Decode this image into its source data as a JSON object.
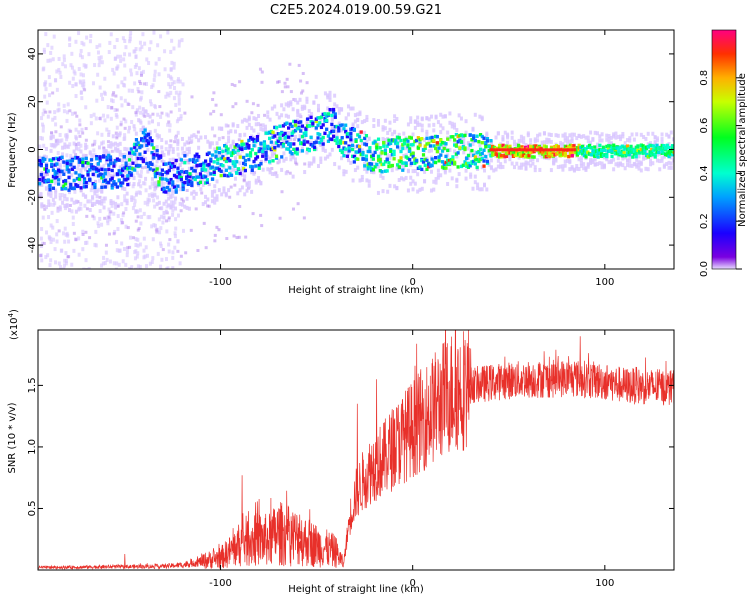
{
  "title": "C2E5.2024.019.00.59.G21",
  "chart_data": [
    {
      "type": "heatmap",
      "xlabel": "Height of straight line (km)",
      "ylabel": "Frequency (Hz)",
      "xlim": [
        -195,
        136
      ],
      "ylim": [
        -50,
        50
      ],
      "xticks": [
        -100,
        0,
        100
      ],
      "yticks": [
        -40,
        -20,
        0,
        20,
        40
      ],
      "colorbar": {
        "label": "Normalized spectral amplitude",
        "range": [
          0,
          1
        ],
        "ticks": [
          "0.0",
          "0.2",
          "0.4",
          "0.6",
          "0.8"
        ]
      },
      "ridge": {
        "x": [
          -195,
          -170,
          -150,
          -140,
          -130,
          -120,
          -100,
          -80,
          -70,
          -60,
          -50,
          -43,
          -38,
          -30,
          -20,
          -10,
          0,
          20,
          40,
          60,
          80,
          100,
          120,
          136
        ],
        "y": [
          -10,
          -9,
          -8,
          3,
          -12,
          -9,
          -5,
          0,
          4,
          6,
          8,
          12,
          5,
          2,
          -2,
          -1,
          -1,
          0,
          0,
          0,
          0,
          0,
          0,
          0
        ]
      }
    },
    {
      "type": "line",
      "xlabel": "Height of straight line (km)",
      "ylabel": "SNR (10 * v/v)",
      "y_multiplier": "(x10",
      "y_exponent": "4",
      "y_multiplier_close": ")",
      "xlim": [
        -195,
        136
      ],
      "ylim": [
        0,
        19500
      ],
      "xticks": [
        -100,
        0,
        100
      ],
      "yticks": [
        "0.5",
        "1.0",
        "1.5"
      ],
      "ytick_values": [
        5000,
        10000,
        15000
      ],
      "color": "#e8302a",
      "envelope": {
        "x": [
          -195,
          -130,
          -120,
          -110,
          -100,
          -95,
          -88,
          -80,
          -75,
          -70,
          -60,
          -50,
          -40,
          -36,
          -33,
          -30,
          -25,
          -20,
          -15,
          -10,
          0,
          10,
          20,
          30,
          40,
          50,
          60,
          70,
          80,
          90,
          100,
          110,
          120,
          136
        ],
        "y": [
          200,
          300,
          400,
          700,
          1000,
          1500,
          2300,
          2500,
          2400,
          3000,
          2600,
          2000,
          1500,
          500,
          4000,
          6000,
          7500,
          8500,
          9000,
          10000,
          11500,
          13000,
          14500,
          15000,
          15200,
          15400,
          15500,
          15500,
          15600,
          15500,
          15300,
          15000,
          14900,
          14800
        ]
      },
      "spikes": [
        {
          "x": -150,
          "y": 1300
        },
        {
          "x": -89,
          "y": 7700
        },
        {
          "x": -82,
          "y": 5500
        },
        {
          "x": -59,
          "y": 4500
        },
        {
          "x": -29,
          "y": 13500
        },
        {
          "x": -19,
          "y": 15500
        },
        {
          "x": 1,
          "y": 16600
        },
        {
          "x": 22,
          "y": 19500
        },
        {
          "x": 30,
          "y": 18000
        },
        {
          "x": 87,
          "y": 19000
        },
        {
          "x": 116,
          "y": 16500
        }
      ]
    }
  ]
}
